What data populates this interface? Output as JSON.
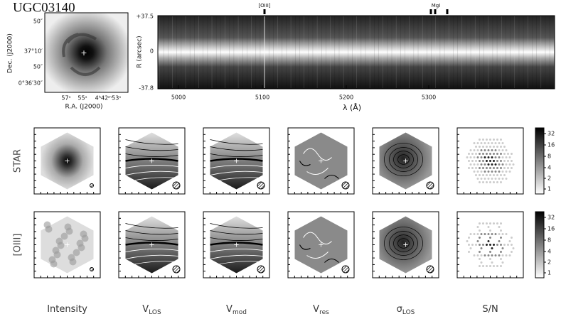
{
  "header": {
    "title": "UGC03140"
  },
  "image": {
    "y_label": "Dec. (J2000)",
    "x_label": "R.A. (J2000)",
    "y_ticks": [
      "50″",
      "37°10′",
      "50″",
      "0°36′30″"
    ],
    "x_ticks": [
      "57ˢ",
      "55ˢ",
      "4ʰ42ᵐ53ˢ"
    ]
  },
  "spectrum": {
    "y_label": "R (arcsec)",
    "x_label": "λ (Å)",
    "y_ticks": [
      "+37.5",
      "0",
      "-37.8"
    ],
    "x_ticks": [
      "5000",
      "5100",
      "5200",
      "5300"
    ],
    "lines": [
      "[OIII]",
      "MgI"
    ]
  },
  "rows": [
    "STAR",
    "[OIII]"
  ],
  "columns": [
    {
      "main": "Intensity"
    },
    {
      "main": "V",
      "sub": "LOS"
    },
    {
      "main": "V",
      "sub": "mod"
    },
    {
      "main": "V",
      "sub": "res"
    },
    {
      "main": "σ",
      "sub": "LOS"
    },
    {
      "main": "S/N"
    }
  ],
  "colorbar": {
    "ticks": [
      "32",
      "16",
      "8",
      "4",
      "2",
      "1"
    ]
  }
}
